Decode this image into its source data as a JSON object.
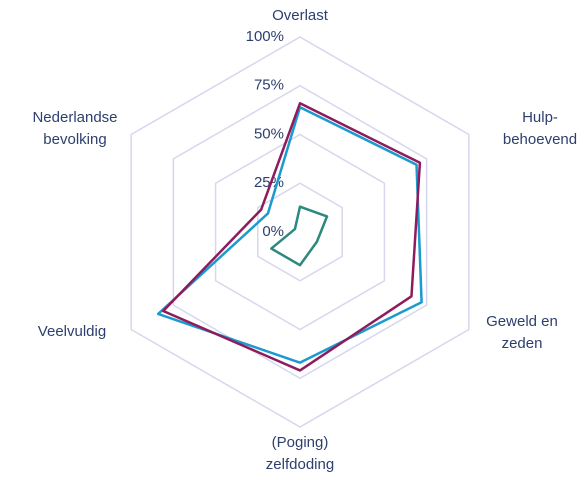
{
  "chart_data": {
    "type": "radar",
    "categories": [
      [
        "Overlast"
      ],
      [
        "Hulp-",
        "behoevend"
      ],
      [
        "Geweld en",
        "zeden"
      ],
      [
        "(Poging)",
        "zelfdoding"
      ],
      [
        "Veelvuldig"
      ],
      [
        "Nederlandse",
        "bevolking"
      ]
    ],
    "series": [
      {
        "color": "#1b9ad0",
        "values": [
          64,
          69,
          72,
          67,
          84,
          19
        ]
      },
      {
        "color": "#8e1c5c",
        "values": [
          66,
          71,
          66,
          71,
          81,
          23
        ]
      },
      {
        "color": "#2b8a7c",
        "values": [
          13,
          16,
          10,
          17,
          17,
          3
        ]
      }
    ],
    "ylim": [
      0,
      100
    ],
    "yticks": [
      {
        "value": 0,
        "label": "0%"
      },
      {
        "value": 25,
        "label": "25%"
      },
      {
        "value": 50,
        "label": "50%"
      },
      {
        "value": 75,
        "label": "75%"
      },
      {
        "value": 100,
        "label": "100%"
      }
    ],
    "grid": true
  }
}
